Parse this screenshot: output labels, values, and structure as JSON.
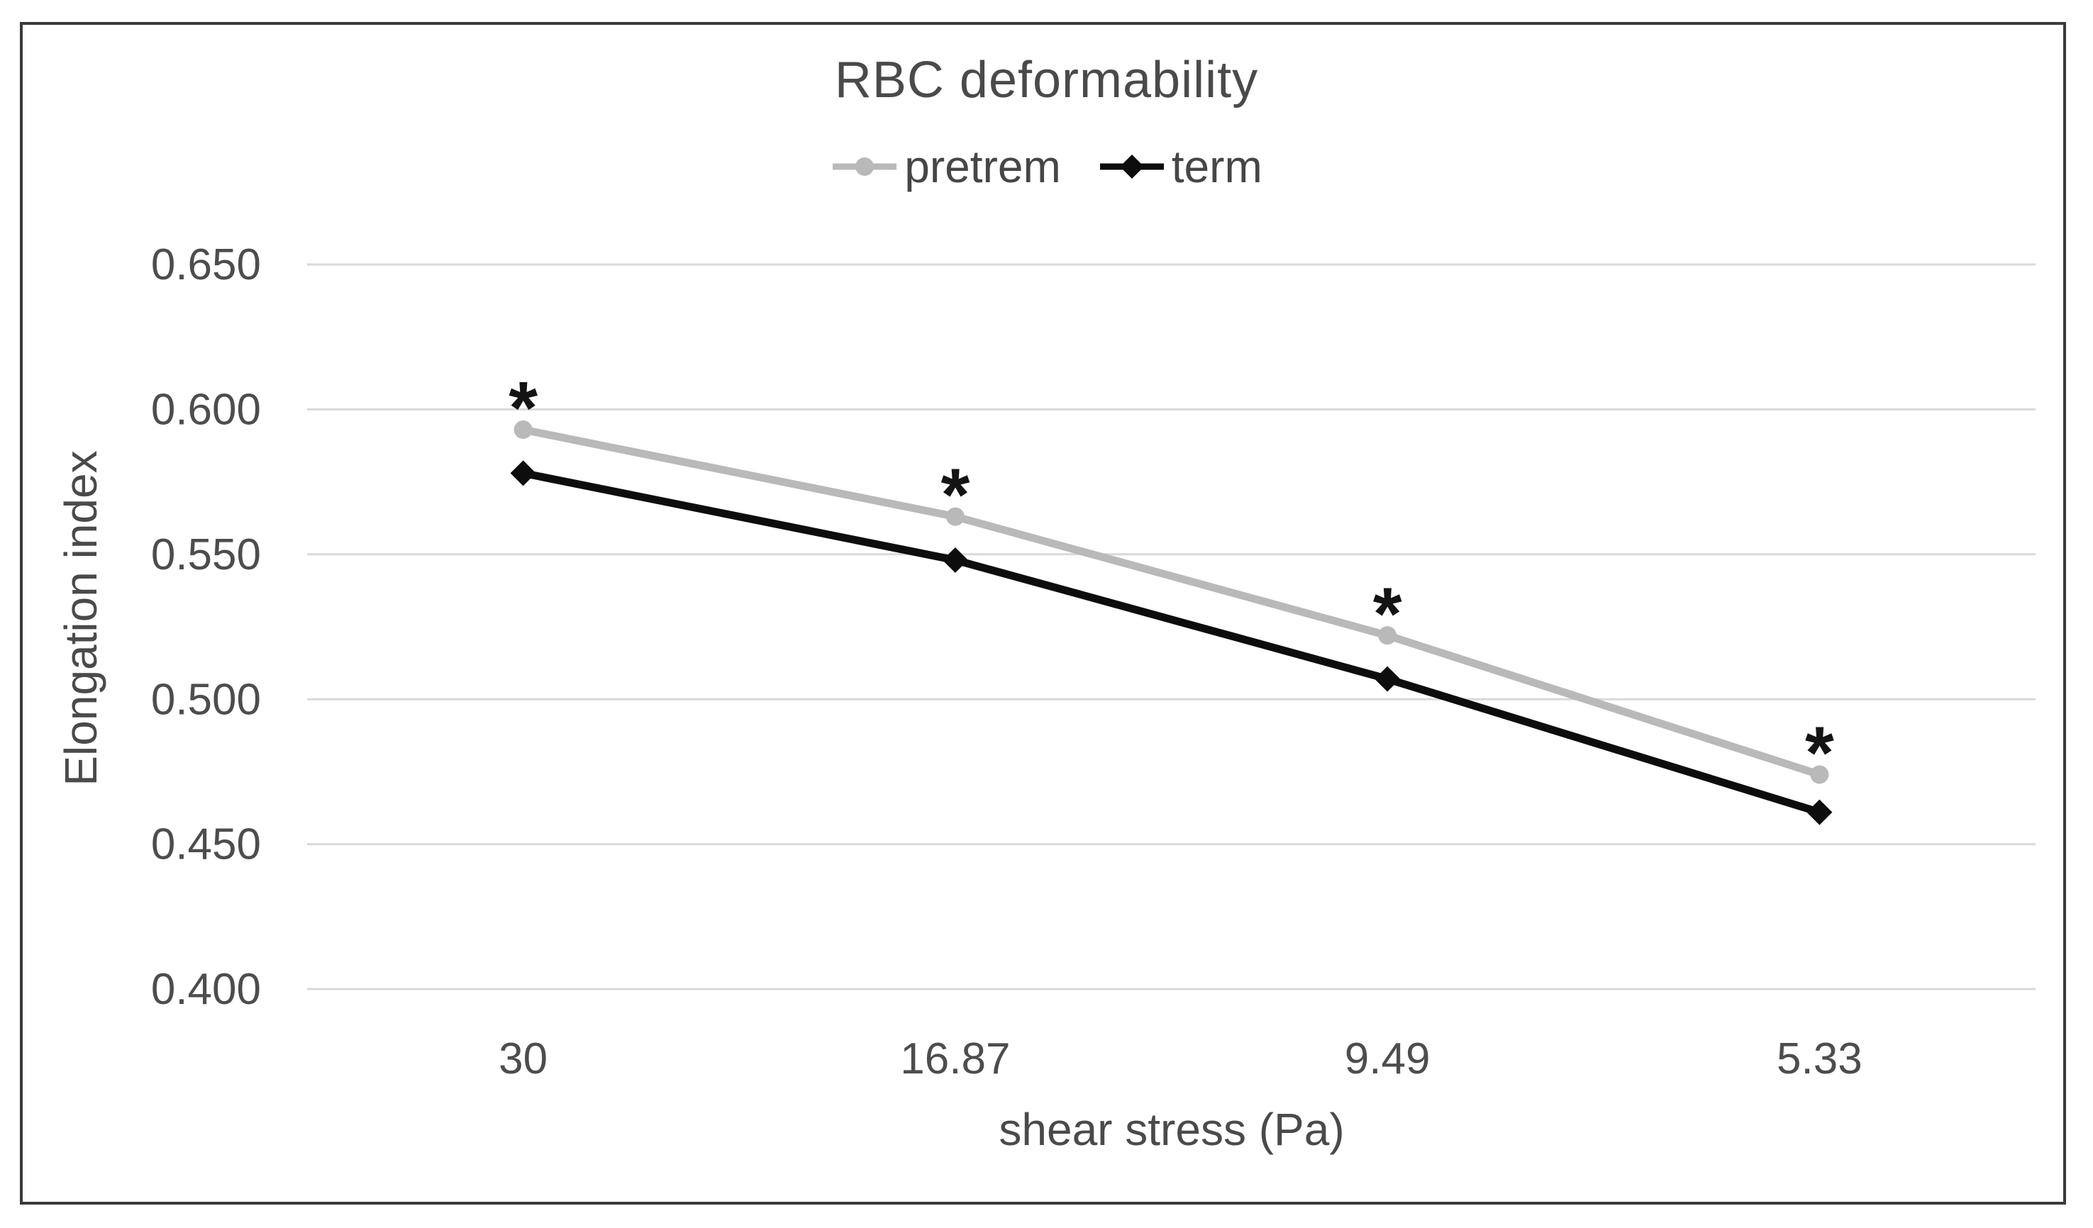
{
  "chart_data": {
    "type": "line",
    "title": "RBC deformability",
    "categories": [
      "30",
      "16.87",
      "9.49",
      "5.33"
    ],
    "series": [
      {
        "name": "pretrem",
        "values": [
          0.593,
          0.563,
          0.522,
          0.474
        ],
        "color": "#b9b9b9",
        "marker": "circle"
      },
      {
        "name": "term",
        "values": [
          0.578,
          0.548,
          0.507,
          0.461
        ],
        "color": "#0d0d0d",
        "marker": "diamond"
      }
    ],
    "annotations": [
      {
        "text": "*",
        "category_index": 0,
        "above_series": "pretrem"
      },
      {
        "text": "*",
        "category_index": 1,
        "above_series": "pretrem"
      },
      {
        "text": "*",
        "category_index": 2,
        "above_series": "pretrem"
      },
      {
        "text": "*",
        "category_index": 3,
        "above_series": "pretrem"
      }
    ],
    "xlabel": "shear stress (Pa)",
    "ylabel": "Elongation index",
    "ylim": [
      0.4,
      0.65
    ],
    "ytick_step": 0.05,
    "ytick_decimals": 3,
    "grid": "horizontal",
    "legend_position": "top",
    "colors": {
      "text": "#4a4a4a",
      "tick_text": "#4d4d4d",
      "gridline": "#d9d9d9",
      "annotation": "#141414",
      "frame_border": "#3a3a3a",
      "background": "#ffffff"
    }
  }
}
